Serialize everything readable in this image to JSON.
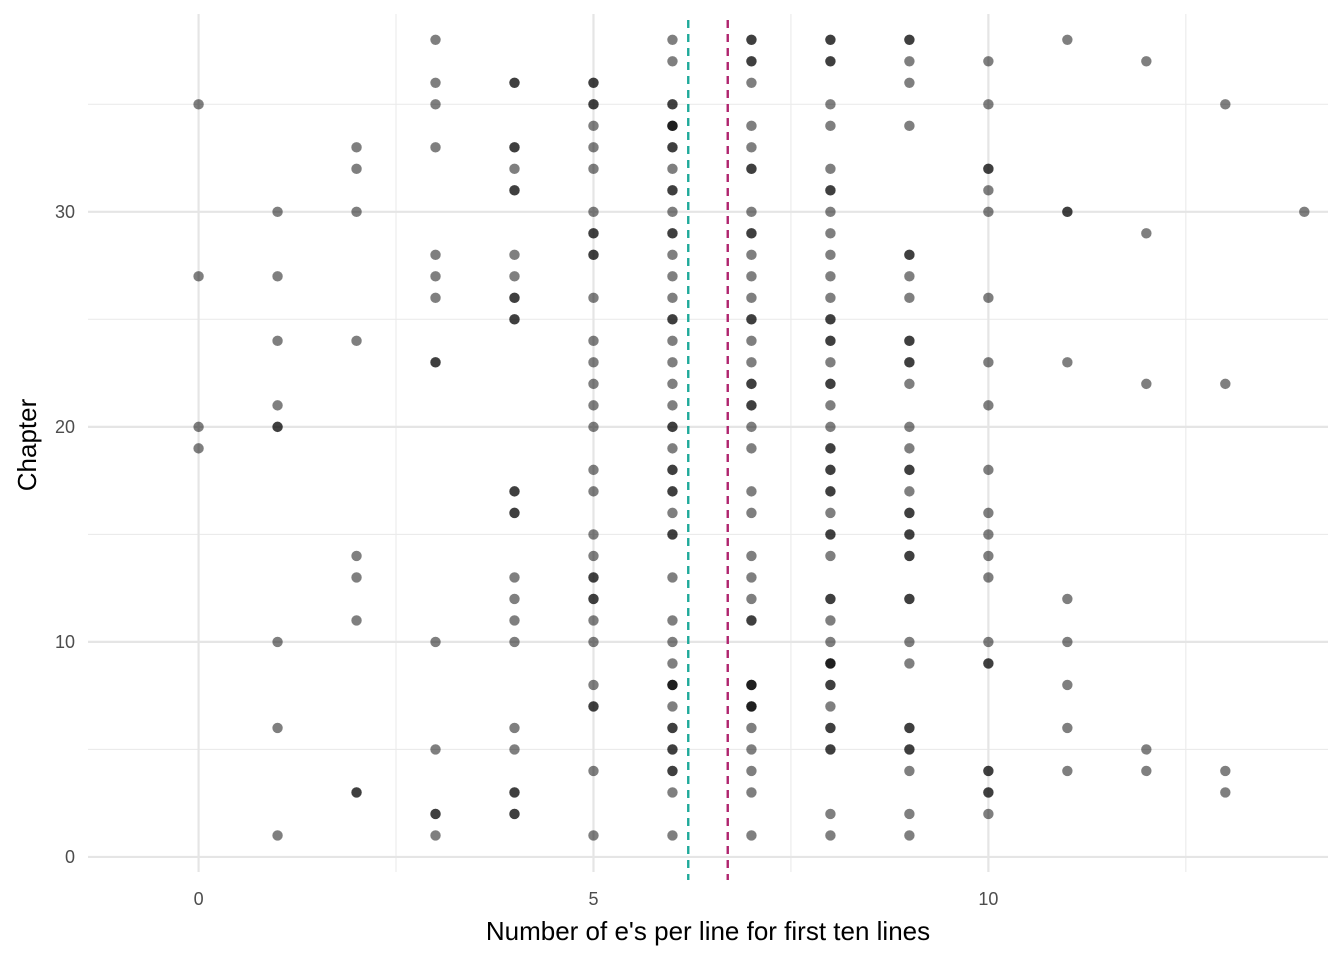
{
  "chart_data": {
    "type": "scatter",
    "title": "",
    "xlabel": "Number of e's per line for first ten lines",
    "ylabel": "Chapter",
    "xlim": [
      -1.4,
      14.3
    ],
    "ylim": [
      -0.7,
      39.2
    ],
    "x_ticks": [
      0,
      5,
      10
    ],
    "x_tick_labels": [
      "0",
      "5",
      "10"
    ],
    "y_ticks": [
      0,
      10,
      20,
      30
    ],
    "y_tick_labels": [
      "0",
      "10",
      "20",
      "30"
    ],
    "grid": true,
    "legend": "none",
    "point_color": "#000000",
    "point_alpha": 0.5,
    "reference_lines": [
      {
        "x": 6.2,
        "color": "#1fa99a",
        "style": "dashed"
      },
      {
        "x": 6.7,
        "color": "#b0246e",
        "style": "dashed"
      }
    ],
    "chapters": [
      {
        "chapter": 1,
        "x": [
          1,
          3,
          5,
          6,
          7,
          8,
          9
        ]
      },
      {
        "chapter": 2,
        "x": [
          3,
          3,
          4,
          4,
          8,
          9,
          10
        ]
      },
      {
        "chapter": 3,
        "x": [
          2,
          2,
          4,
          4,
          6,
          7,
          10,
          10,
          13
        ]
      },
      {
        "chapter": 4,
        "x": [
          5,
          6,
          6,
          7,
          9,
          10,
          10,
          11,
          12,
          13
        ]
      },
      {
        "chapter": 5,
        "x": [
          3,
          4,
          6,
          6,
          7,
          8,
          8,
          9,
          9,
          12
        ]
      },
      {
        "chapter": 6,
        "x": [
          1,
          4,
          6,
          6,
          7,
          8,
          8,
          9,
          9,
          11
        ]
      },
      {
        "chapter": 7,
        "x": [
          5,
          5,
          6,
          7,
          7,
          7,
          8
        ]
      },
      {
        "chapter": 8,
        "x": [
          5,
          6,
          6,
          6,
          7,
          7,
          7,
          8,
          8,
          11
        ]
      },
      {
        "chapter": 9,
        "x": [
          6,
          8,
          8,
          8,
          9,
          10,
          10
        ]
      },
      {
        "chapter": 10,
        "x": [
          1,
          3,
          4,
          5,
          6,
          8,
          9,
          10,
          11
        ]
      },
      {
        "chapter": 11,
        "x": [
          2,
          4,
          5,
          6,
          7,
          7,
          8
        ]
      },
      {
        "chapter": 12,
        "x": [
          4,
          5,
          5,
          7,
          8,
          8,
          9,
          9,
          11
        ]
      },
      {
        "chapter": 13,
        "x": [
          2,
          4,
          5,
          5,
          6,
          7,
          10
        ]
      },
      {
        "chapter": 14,
        "x": [
          2,
          5,
          7,
          8,
          9,
          9,
          10
        ]
      },
      {
        "chapter": 15,
        "x": [
          5,
          6,
          6,
          8,
          8,
          9,
          9,
          10
        ]
      },
      {
        "chapter": 16,
        "x": [
          4,
          4,
          6,
          7,
          8,
          9,
          9,
          10
        ]
      },
      {
        "chapter": 17,
        "x": [
          4,
          4,
          5,
          6,
          6,
          7,
          8,
          8,
          9
        ]
      },
      {
        "chapter": 18,
        "x": [
          5,
          6,
          6,
          8,
          8,
          9,
          9,
          10
        ]
      },
      {
        "chapter": 19,
        "x": [
          0,
          6,
          7,
          8,
          8,
          9
        ]
      },
      {
        "chapter": 20,
        "x": [
          0,
          1,
          1,
          5,
          6,
          6,
          7,
          8,
          9
        ]
      },
      {
        "chapter": 21,
        "x": [
          1,
          5,
          6,
          7,
          7,
          8,
          10
        ]
      },
      {
        "chapter": 22,
        "x": [
          5,
          6,
          7,
          7,
          8,
          8,
          9,
          12,
          13
        ]
      },
      {
        "chapter": 23,
        "x": [
          3,
          3,
          5,
          6,
          7,
          8,
          9,
          9,
          10,
          11
        ]
      },
      {
        "chapter": 24,
        "x": [
          1,
          2,
          5,
          6,
          7,
          8,
          8,
          9,
          9
        ]
      },
      {
        "chapter": 25,
        "x": [
          4,
          4,
          6,
          6,
          7,
          7,
          8,
          8
        ]
      },
      {
        "chapter": 26,
        "x": [
          3,
          4,
          4,
          5,
          6,
          7,
          8,
          9,
          10
        ]
      },
      {
        "chapter": 27,
        "x": [
          0,
          1,
          3,
          4,
          6,
          7,
          8,
          9
        ]
      },
      {
        "chapter": 28,
        "x": [
          3,
          4,
          5,
          5,
          6,
          7,
          8,
          9,
          9
        ]
      },
      {
        "chapter": 29,
        "x": [
          5,
          5,
          6,
          6,
          7,
          7,
          8,
          12
        ]
      },
      {
        "chapter": 30,
        "x": [
          1,
          2,
          5,
          6,
          7,
          8,
          10,
          11,
          11,
          14
        ]
      },
      {
        "chapter": 31,
        "x": [
          4,
          4,
          6,
          6,
          8,
          8,
          10
        ]
      },
      {
        "chapter": 32,
        "x": [
          2,
          4,
          5,
          6,
          7,
          7,
          8,
          10,
          10
        ]
      },
      {
        "chapter": 33,
        "x": [
          2,
          3,
          4,
          4,
          5,
          6,
          6,
          7
        ]
      },
      {
        "chapter": 34,
        "x": [
          5,
          6,
          6,
          6,
          7,
          8,
          9
        ]
      },
      {
        "chapter": 35,
        "x": [
          0,
          3,
          5,
          5,
          6,
          6,
          8,
          10,
          13
        ]
      },
      {
        "chapter": 36,
        "x": [
          3,
          4,
          4,
          5,
          5,
          7,
          9
        ]
      },
      {
        "chapter": 37,
        "x": [
          6,
          7,
          7,
          8,
          8,
          9,
          10,
          12
        ]
      },
      {
        "chapter": 38,
        "x": [
          3,
          6,
          7,
          7,
          8,
          8,
          9,
          9,
          11
        ]
      }
    ]
  }
}
